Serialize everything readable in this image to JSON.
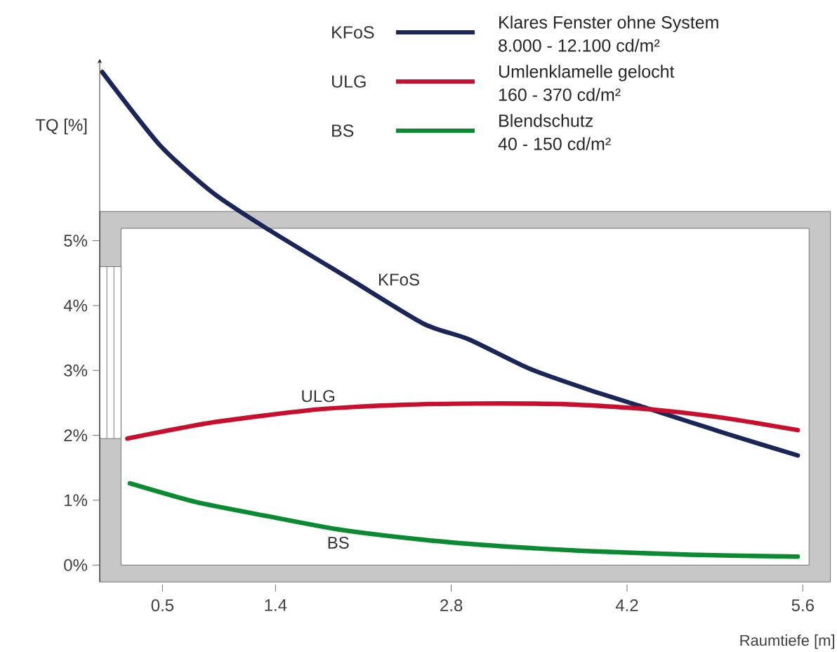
{
  "chart_data": {
    "type": "line",
    "xlabel": "Raumtiefe  [m]",
    "ylabel": "TQ  [%]",
    "xlim": [
      0,
      5.85
    ],
    "ylim": [
      -0.3,
      7.8
    ],
    "xticks": [
      0.5,
      1.4,
      2.8,
      4.2,
      5.6
    ],
    "yticks": [
      {
        "value": 0,
        "label": "0%"
      },
      {
        "value": 1,
        "label": "1%"
      },
      {
        "value": 2,
        "label": "2%"
      },
      {
        "value": 3,
        "label": "3%"
      },
      {
        "value": 4,
        "label": "4%"
      },
      {
        "value": 5,
        "label": "5%"
      }
    ],
    "grid": false,
    "legend": "top",
    "marker": "none",
    "line_style": "solid",
    "series": [
      {
        "name": "KFoS",
        "color": "#1a2558",
        "x": [
          0.02,
          0.48,
          0.9,
          1.32,
          2.0,
          2.58,
          2.94,
          3.42,
          3.9,
          4.39,
          5.0,
          5.56
        ],
        "values": [
          7.6,
          6.47,
          5.74,
          5.2,
          4.4,
          3.72,
          3.48,
          3.03,
          2.7,
          2.4,
          2.02,
          1.69
        ]
      },
      {
        "name": "ULG",
        "color": "#c8102e",
        "x": [
          0.22,
          0.9,
          1.74,
          2.4,
          3.0,
          3.7,
          4.39,
          5.0,
          5.56
        ],
        "values": [
          1.95,
          2.2,
          2.4,
          2.47,
          2.49,
          2.48,
          2.4,
          2.26,
          2.08
        ]
      },
      {
        "name": "BS",
        "color": "#0b8a32",
        "x": [
          0.24,
          0.77,
          1.32,
          1.9,
          2.58,
          3.2,
          3.84,
          4.7,
          5.56
        ],
        "values": [
          1.26,
          0.97,
          0.76,
          0.55,
          0.39,
          0.29,
          0.22,
          0.16,
          0.13
        ]
      }
    ],
    "annotations": [
      "Klares Fenster ohne System",
      "8.000 - 12.100 cd/m²",
      "Umlenklamelle gelocht",
      "160 - 370 cd/m²",
      "Blendschutz",
      "40 - 150 cd/m²"
    ]
  }
}
